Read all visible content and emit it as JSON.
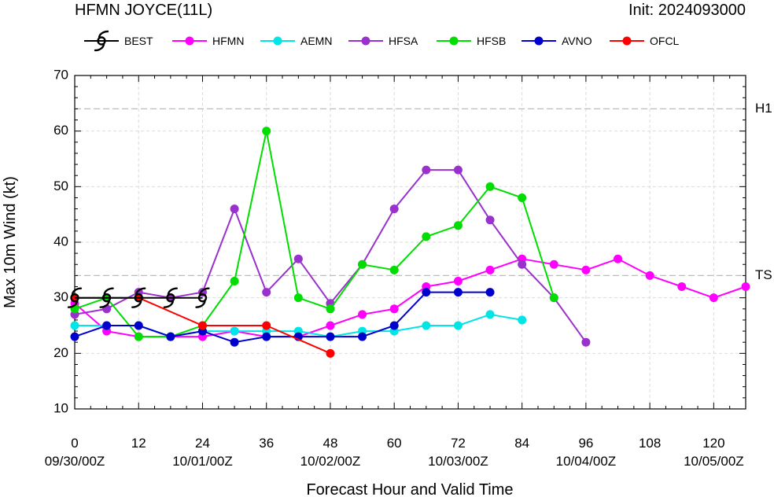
{
  "chart_data": {
    "type": "line",
    "title": "HFMN JOYCE(11L)",
    "init_label": "Init: 2024093000",
    "xlabel": "Forecast Hour and Valid Time",
    "ylabel": "Max 10m Wind (kt)",
    "xlim": [
      0,
      126
    ],
    "ylim": [
      10,
      70
    ],
    "xticks": [
      0,
      12,
      24,
      36,
      48,
      60,
      72,
      84,
      96,
      108,
      120
    ],
    "yticks": [
      10,
      20,
      30,
      40,
      50,
      60,
      70
    ],
    "date_ticks": [
      {
        "x": 0,
        "label": "09/30/00Z"
      },
      {
        "x": 24,
        "label": "10/01/00Z"
      },
      {
        "x": 48,
        "label": "10/02/00Z"
      },
      {
        "x": 72,
        "label": "10/03/00Z"
      },
      {
        "x": 96,
        "label": "10/04/00Z"
      },
      {
        "x": 120,
        "label": "10/05/00Z"
      }
    ],
    "thresholds": [
      {
        "label": "H1",
        "value": 64
      },
      {
        "label": "TS",
        "value": 34
      }
    ],
    "grid": true,
    "legend_position": "top",
    "series": [
      {
        "name": "BEST",
        "color": "#000000",
        "marker": "hurricane-symbol",
        "x": [
          0,
          6,
          12,
          18,
          24
        ],
        "y": [
          30,
          30,
          30,
          30,
          30
        ]
      },
      {
        "name": "HFMN",
        "color": "#ff00ff",
        "marker": "circle",
        "x": [
          0,
          6,
          12,
          18,
          24,
          30,
          36,
          42,
          48,
          54,
          60,
          66,
          72,
          78,
          84,
          90,
          96,
          102,
          108,
          114,
          120,
          126
        ],
        "y": [
          29,
          24,
          23,
          23,
          23,
          24,
          23,
          23,
          25,
          27,
          28,
          32,
          33,
          35,
          37,
          36,
          35,
          37,
          34,
          32,
          30,
          32
        ]
      },
      {
        "name": "AEMN",
        "color": "#00e5e5",
        "marker": "circle",
        "x": [
          0,
          6,
          12,
          18,
          24,
          30,
          36,
          42,
          48,
          54,
          60,
          66,
          72,
          78,
          84
        ],
        "y": [
          25,
          25,
          25,
          23,
          24,
          24,
          24,
          24,
          23,
          24,
          24,
          25,
          25,
          27,
          26
        ]
      },
      {
        "name": "HFSA",
        "color": "#9932cc",
        "marker": "circle",
        "x": [
          0,
          6,
          12,
          18,
          24,
          30,
          36,
          42,
          48,
          54,
          60,
          66,
          72,
          78,
          84,
          90,
          96
        ],
        "y": [
          27,
          28,
          31,
          30,
          31,
          46,
          31,
          37,
          29,
          36,
          46,
          53,
          53,
          44,
          36,
          30,
          22
        ]
      },
      {
        "name": "HFSB",
        "color": "#00dd00",
        "marker": "circle",
        "x": [
          0,
          6,
          12,
          18,
          24,
          30,
          36,
          42,
          48,
          54,
          60,
          66,
          72,
          78,
          84,
          90
        ],
        "y": [
          28,
          30,
          23,
          23,
          25,
          33,
          60,
          30,
          28,
          36,
          35,
          41,
          43,
          50,
          48,
          30
        ]
      },
      {
        "name": "AVNO",
        "color": "#0000cd",
        "marker": "circle",
        "x": [
          0,
          6,
          12,
          18,
          24,
          30,
          36,
          42,
          48,
          54,
          60,
          66,
          72,
          78
        ],
        "y": [
          23,
          25,
          25,
          23,
          24,
          22,
          23,
          23,
          23,
          23,
          25,
          31,
          31,
          31
        ]
      },
      {
        "name": "OFCL",
        "color": "#ff0000",
        "marker": "circle",
        "x": [
          0,
          12,
          24,
          36,
          48
        ],
        "y": [
          30,
          30,
          25,
          25,
          20
        ]
      }
    ]
  }
}
